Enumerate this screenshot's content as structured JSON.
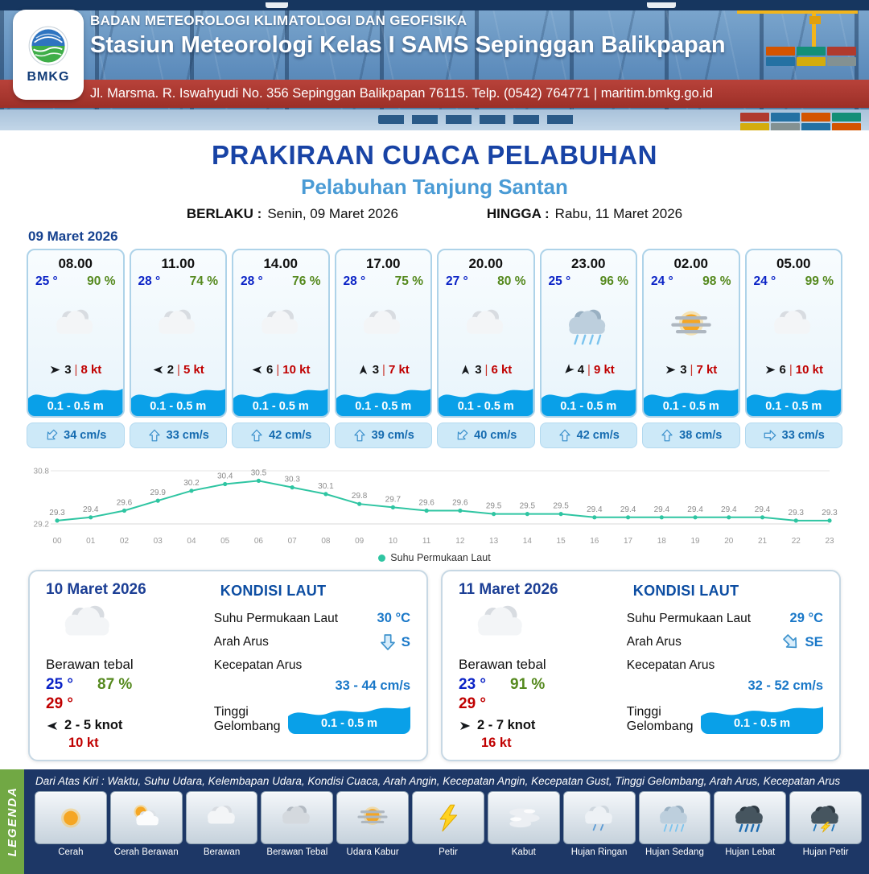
{
  "header": {
    "logo_text": "BMKG",
    "org": "BADAN METEOROLOGI KLIMATOLOGI DAN GEOFISIKA",
    "station": "Stasiun Meteorologi Kelas I SAMS Sepinggan Balikpapan",
    "address": "Jl. Marsma. R. Iswahyudi No. 356 Sepinggan Balikpapan 76115. Telp. (0542) 764771 | maritim.bmkg.go.id"
  },
  "title": {
    "main": "PRAKIRAAN CUACA PELABUHAN",
    "subtitle": "Pelabuhan Tanjung Santan",
    "berlaku_label": "BERLAKU :",
    "berlaku_value": "Senin, 09 Maret 2026",
    "hingga_label": "HINGGA :",
    "hingga_value": "Rabu, 11 Maret 2026"
  },
  "forecast": {
    "date": "09 Maret 2026",
    "cards": [
      {
        "time": "08.00",
        "temp": "25 °",
        "humidity": "90 %",
        "icon": "cloud",
        "wind_dir": "e",
        "wind_speed": "3",
        "gust": "8 kt",
        "wave": "0.1 - 0.5 m",
        "current_dir": "sw",
        "current": "34 cm/s"
      },
      {
        "time": "11.00",
        "temp": "28 °",
        "humidity": "74 %",
        "icon": "cloud",
        "wind_dir": "w",
        "wind_speed": "2",
        "gust": "5 kt",
        "wave": "0.1 - 0.5 m",
        "current_dir": "n",
        "current": "33 cm/s"
      },
      {
        "time": "14.00",
        "temp": "28 °",
        "humidity": "76 %",
        "icon": "cloud",
        "wind_dir": "w",
        "wind_speed": "6",
        "gust": "10 kt",
        "wave": "0.1 - 0.5 m",
        "current_dir": "n",
        "current": "42 cm/s"
      },
      {
        "time": "17.00",
        "temp": "28 °",
        "humidity": "75 %",
        "icon": "cloud",
        "wind_dir": "n",
        "wind_speed": "3",
        "gust": "7 kt",
        "wave": "0.1 - 0.5 m",
        "current_dir": "n",
        "current": "39 cm/s"
      },
      {
        "time": "20.00",
        "temp": "27 °",
        "humidity": "80 %",
        "icon": "cloud",
        "wind_dir": "n",
        "wind_speed": "3",
        "gust": "6 kt",
        "wave": "0.1 - 0.5 m",
        "current_dir": "sw",
        "current": "40 cm/s"
      },
      {
        "time": "23.00",
        "temp": "25 °",
        "humidity": "96 %",
        "icon": "rain-med",
        "wind_dir": "sw",
        "wind_speed": "4",
        "gust": "9 kt",
        "wave": "0.1 - 0.5 m",
        "current_dir": "n",
        "current": "42 cm/s"
      },
      {
        "time": "02.00",
        "temp": "24 °",
        "humidity": "98 %",
        "icon": "haze",
        "wind_dir": "e",
        "wind_speed": "3",
        "gust": "7 kt",
        "wave": "0.1 - 0.5 m",
        "current_dir": "n",
        "current": "38 cm/s"
      },
      {
        "time": "05.00",
        "temp": "24 °",
        "humidity": "99 %",
        "icon": "cloud",
        "wind_dir": "e",
        "wind_speed": "6",
        "gust": "10 kt",
        "wave": "0.1 - 0.5 m",
        "current_dir": "e",
        "current": "33 cm/s"
      }
    ]
  },
  "chart_data": {
    "type": "line",
    "series_name": "Suhu Permukaan Laut",
    "x": [
      "00",
      "01",
      "02",
      "03",
      "04",
      "05",
      "06",
      "07",
      "08",
      "09",
      "10",
      "11",
      "12",
      "13",
      "14",
      "15",
      "16",
      "17",
      "18",
      "19",
      "20",
      "21",
      "22",
      "23"
    ],
    "values": [
      29.3,
      29.4,
      29.6,
      29.9,
      30.2,
      30.4,
      30.5,
      30.3,
      30.1,
      29.8,
      29.7,
      29.6,
      29.6,
      29.5,
      29.5,
      29.5,
      29.4,
      29.4,
      29.4,
      29.4,
      29.4,
      29.4,
      29.3,
      29.3
    ],
    "ylim": [
      29.2,
      30.8
    ],
    "line_color": "#2fc5a2",
    "legend_position": "bottom",
    "grid": true
  },
  "summary": [
    {
      "date": "10 Maret 2026",
      "icon": "cloud",
      "condition": "Berawan tebal",
      "temp_min": "25 °",
      "humidity": "87 %",
      "temp_max": "29 °",
      "wind_dir": "w",
      "wind_range": "2 - 5 knot",
      "gust": "10 kt",
      "sea": {
        "heading": "KONDISI LAUT",
        "sst_label": "Suhu Permukaan Laut",
        "sst": "30 °C",
        "arah_label": "Arah Arus",
        "arah_dir": "s",
        "arah": "S",
        "kecepatan_label": "Kecepatan Arus",
        "kecepatan": "33 - 44 cm/s",
        "gelombang_label": "Tinggi Gelombang",
        "gelombang": "0.1 - 0.5 m"
      }
    },
    {
      "date": "11 Maret 2026",
      "icon": "cloud",
      "condition": "Berawan tebal",
      "temp_min": "23 °",
      "humidity": "91 %",
      "temp_max": "29 °",
      "wind_dir": "e",
      "wind_range": "2 - 7 knot",
      "gust": "16 kt",
      "sea": {
        "heading": "KONDISI LAUT",
        "sst_label": "Suhu Permukaan Laut",
        "sst": "29 °C",
        "arah_label": "Arah Arus",
        "arah_dir": "se",
        "arah": "SE",
        "kecepatan_label": "Kecepatan Arus",
        "kecepatan": "32 - 52 cm/s",
        "gelombang_label": "Tinggi Gelombang",
        "gelombang": "0.1 - 0.5 m"
      }
    }
  ],
  "legend": {
    "vertical_label": "LEGENDA",
    "note": "Dari Atas Kiri : Waktu, Suhu Udara, Kelembapan Udara, Kondisi Cuaca, Arah Angin, Kecepatan Angin, Kecepatan Gust, Tinggi Gelombang, Arah Arus, Kecepatan Arus",
    "items": [
      {
        "label": "Cerah",
        "icon": "sun"
      },
      {
        "label": "Cerah Berawan",
        "icon": "sun-cloud"
      },
      {
        "label": "Berawan",
        "icon": "cloud"
      },
      {
        "label": "Berawan Tebal",
        "icon": "cloud-thick"
      },
      {
        "label": "Udara Kabur",
        "icon": "haze"
      },
      {
        "label": "Petir",
        "icon": "lightning"
      },
      {
        "label": "Kabut",
        "icon": "fog"
      },
      {
        "label": "Hujan Ringan",
        "icon": "rain-light"
      },
      {
        "label": "Hujan Sedang",
        "icon": "rain-med"
      },
      {
        "label": "Hujan Lebat",
        "icon": "rain-heavy"
      },
      {
        "label": "Hujan Petir",
        "icon": "storm"
      }
    ]
  },
  "colors": {
    "title_blue": "#1843a5",
    "subtitle_blue": "#4a9bd5",
    "temp_blue": "#0b23c6",
    "humidity_green": "#55891e",
    "gust_red": "#c00000",
    "wave_blue": "#09a0e8",
    "footer_navy": "#1d3766",
    "legend_green": "#71a844",
    "band_red": "#9c2f27"
  }
}
